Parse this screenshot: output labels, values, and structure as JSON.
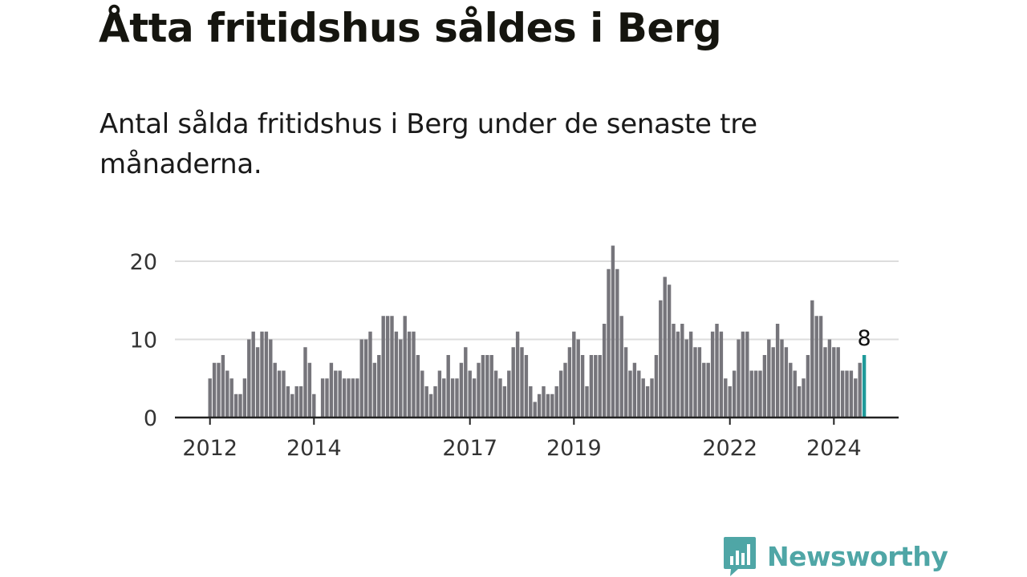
{
  "title": "Åtta fritidshus såldes i Berg",
  "subtitle": "Antal sålda fritidshus i Berg under de senaste tre månaderna.",
  "brand": {
    "name": "Newsworthy",
    "icon": "bar-chart-speech-bubble-icon",
    "color": "#4fa6a6"
  },
  "colors": {
    "bar": "#76757b",
    "highlight": "#1f9a9a",
    "grid": "#dddddd",
    "axis": "#222222"
  },
  "chart_data": {
    "type": "bar",
    "x_ticks": [
      "2012",
      "2014",
      "2017",
      "2019",
      "2022",
      "2024"
    ],
    "y_ticks": [
      "0",
      "10",
      "20"
    ],
    "ylim": [
      0,
      23
    ],
    "grid": true,
    "legend": "none",
    "highlight_label": "8",
    "series": [
      {
        "values": [
          5,
          7,
          7,
          8,
          6,
          5,
          3,
          3,
          5,
          10,
          11,
          9,
          11,
          11,
          10,
          7,
          6,
          6,
          4,
          3,
          4,
          4,
          9,
          7,
          3,
          0,
          5,
          5,
          7,
          6,
          6,
          5,
          5,
          5,
          5,
          10,
          10,
          11,
          7,
          8,
          13,
          13,
          13,
          11,
          10,
          13,
          11,
          11,
          8,
          6,
          4,
          3,
          4,
          6,
          5,
          8,
          5,
          5,
          7,
          9,
          6,
          5,
          7,
          8,
          8,
          8,
          6,
          5,
          4,
          6,
          9,
          11,
          9,
          8,
          4,
          2,
          3,
          4,
          3,
          3,
          4,
          6,
          7,
          9,
          11,
          10,
          8,
          4,
          8,
          8,
          8,
          12,
          19,
          22,
          19,
          13,
          9,
          6,
          7,
          6,
          5,
          4,
          5,
          8,
          15,
          18,
          17,
          12,
          11,
          12,
          10,
          11,
          9,
          9,
          7,
          7,
          11,
          12,
          11,
          5,
          4,
          6,
          10,
          11,
          11,
          6,
          6,
          6,
          8,
          10,
          9,
          12,
          10,
          9,
          7,
          6,
          4,
          5,
          8,
          15,
          13,
          13,
          9,
          10,
          9,
          9,
          6,
          6,
          6,
          5,
          7,
          8
        ]
      }
    ]
  }
}
